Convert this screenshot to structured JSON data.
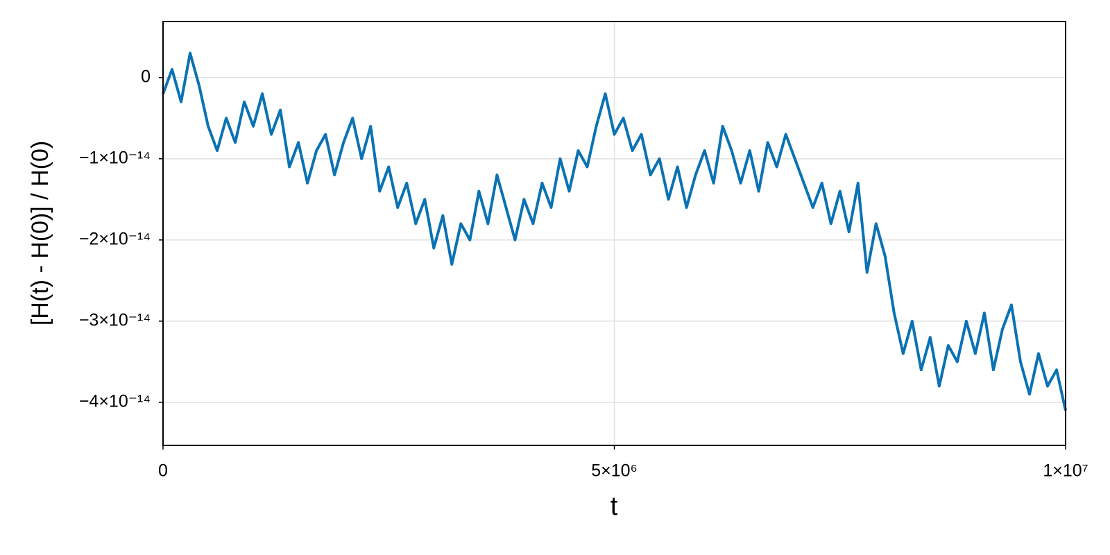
{
  "chart_data": {
    "type": "line",
    "x_label": "t",
    "y_label": "[H(t) - H(0)] / H(0)",
    "xlim": [
      0,
      10000000
    ],
    "ylim": [
      -4.53e-14,
      6.9e-15
    ],
    "xticks": [
      0,
      {
        "value": 5000000,
        "label": "5×10⁶"
      },
      {
        "value": 10000000,
        "label": "1×10⁷"
      }
    ],
    "yticks": [
      0,
      {
        "value": -1e-14,
        "label": "−1×10⁻¹⁴"
      },
      {
        "value": -2e-14,
        "label": "−2×10⁻¹⁴"
      },
      {
        "value": -3e-14,
        "label": "−3×10⁻¹⁴"
      },
      {
        "value": -4e-14,
        "label": "−4×10⁻¹⁴"
      }
    ],
    "grid": true,
    "x": [
      0,
      100000,
      200000,
      300000,
      400000,
      500000,
      600000,
      700000,
      800000,
      900000,
      1000000,
      1100000,
      1200000,
      1300000,
      1400000,
      1500000,
      1600000,
      1700000,
      1800000,
      1900000,
      2000000,
      2100000,
      2200000,
      2300000,
      2400000,
      2500000,
      2600000,
      2700000,
      2800000,
      2900000,
      3000000,
      3100000,
      3200000,
      3300000,
      3400000,
      3500000,
      3600000,
      3700000,
      3800000,
      3900000,
      4000000,
      4100000,
      4200000,
      4300000,
      4400000,
      4500000,
      4600000,
      4700000,
      4800000,
      4900000,
      5000000,
      5100000,
      5200000,
      5300000,
      5400000,
      5500000,
      5600000,
      5700000,
      5800000,
      5900000,
      6000000,
      6100000,
      6200000,
      6300000,
      6400000,
      6500000,
      6600000,
      6700000,
      6800000,
      6900000,
      7000000,
      7100000,
      7200000,
      7300000,
      7400000,
      7500000,
      7600000,
      7700000,
      7800000,
      7900000,
      8000000,
      8100000,
      8200000,
      8300000,
      8400000,
      8500000,
      8600000,
      8700000,
      8800000,
      8900000,
      9000000,
      9100000,
      9200000,
      9300000,
      9400000,
      9500000,
      9600000,
      9700000,
      9800000,
      9900000,
      10000000
    ],
    "series": [
      {
        "color": "#0a72b4",
        "values": [
          -2e-15,
          1e-15,
          -3e-15,
          3e-15,
          -1e-15,
          -6e-15,
          -9e-15,
          -5e-15,
          -8e-15,
          -3e-15,
          -6e-15,
          -2e-15,
          -7e-15,
          -4e-15,
          -1.1e-14,
          -8e-15,
          -1.3e-14,
          -9e-15,
          -7e-15,
          -1.2e-14,
          -8e-15,
          -5e-15,
          -1e-14,
          -6e-15,
          -1.4e-14,
          -1.1e-14,
          -1.6e-14,
          -1.3e-14,
          -1.8e-14,
          -1.5e-14,
          -2.1e-14,
          -1.7e-14,
          -2.3e-14,
          -1.8e-14,
          -2e-14,
          -1.4e-14,
          -1.8e-14,
          -1.2e-14,
          -1.6e-14,
          -2e-14,
          -1.5e-14,
          -1.8e-14,
          -1.3e-14,
          -1.6e-14,
          -1e-14,
          -1.4e-14,
          -9e-15,
          -1.1e-14,
          -6e-15,
          -2e-15,
          -7e-15,
          -5e-15,
          -9e-15,
          -7e-15,
          -1.2e-14,
          -1e-14,
          -1.5e-14,
          -1.1e-14,
          -1.6e-14,
          -1.2e-14,
          -9e-15,
          -1.3e-14,
          -6e-15,
          -9e-15,
          -1.3e-14,
          -9e-15,
          -1.4e-14,
          -8e-15,
          -1.1e-14,
          -7e-15,
          -1e-14,
          -1.3e-14,
          -1.6e-14,
          -1.3e-14,
          -1.8e-14,
          -1.4e-14,
          -1.9e-14,
          -1.3e-14,
          -2.4e-14,
          -1.8e-14,
          -2.2e-14,
          -2.9e-14,
          -3.4e-14,
          -3e-14,
          -3.6e-14,
          -3.2e-14,
          -3.8e-14,
          -3.3e-14,
          -3.5e-14,
          -3e-14,
          -3.4e-14,
          -2.9e-14,
          -3.6e-14,
          -3.1e-14,
          -2.8e-14,
          -3.5e-14,
          -3.9e-14,
          -3.4e-14,
          -3.8e-14,
          -3.6e-14,
          -4.1e-14
        ]
      }
    ]
  }
}
